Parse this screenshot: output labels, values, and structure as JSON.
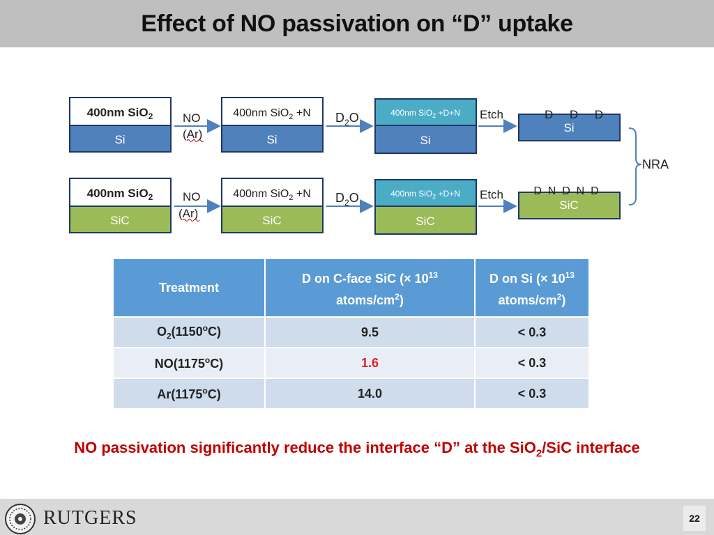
{
  "title": "Effect of NO passivation on “D” uptake",
  "diagram": {
    "rows": [
      {
        "substrate": "Si",
        "stage1_oxide": [
          "400nm SiO",
          "2",
          ""
        ],
        "gas_treatment": [
          "NO",
          "(Ar)"
        ],
        "stage2_oxide": [
          "400nm SiO",
          "2",
          " +N"
        ],
        "d2o": [
          "D",
          "2",
          "O"
        ],
        "stage3_oxide": [
          "400nm SiO",
          "2",
          " +D+N"
        ],
        "etch": "Etch",
        "surface_species": "D     D     D"
      },
      {
        "substrate": "SiC",
        "stage1_oxide": [
          "400nm SiO",
          "2",
          ""
        ],
        "gas_treatment": [
          "NO",
          "(Ar)"
        ],
        "stage2_oxide": [
          "400nm SiO",
          "2",
          " +N"
        ],
        "d2o": [
          "D",
          "2",
          "O"
        ],
        "stage3_oxide": [
          "400nm SiO",
          "2",
          " +D+N"
        ],
        "etch": "Etch",
        "surface_species": "D  N  D  N  D"
      }
    ],
    "analysis": "NRA"
  },
  "table": {
    "headers": [
      [
        "Treatment",
        "",
        ""
      ],
      [
        "D on C-face SiC (× 10",
        "13",
        " atoms/cm",
        "2",
        ")"
      ],
      [
        "D on Si (× 10",
        "13",
        " atoms/cm",
        "2",
        ")"
      ]
    ],
    "rows": [
      {
        "treatment": [
          "O",
          "2",
          "(1150",
          "o",
          "C)"
        ],
        "sic": "9.5",
        "si": "< 0.3"
      },
      {
        "treatment": [
          "NO(1175",
          "o",
          "C)"
        ],
        "sic": "1.6",
        "si": "< 0.3"
      },
      {
        "treatment": [
          "Ar(1175",
          "o",
          "C)"
        ],
        "sic": "14.0",
        "si": "< 0.3"
      }
    ]
  },
  "conclusion": [
    "NO passivation significantly reduce the interface “D” at the SiO",
    "2",
    "/SiC interface"
  ],
  "footer": {
    "logo_text": "RUTGERS",
    "page_number": "22"
  },
  "colors": {
    "si_blue": "#4f81bd",
    "sic_green": "#9bbb59",
    "d_oxide": "#4bacc6",
    "highlight_red": "#e02020",
    "conclusion_red": "#c00000"
  }
}
